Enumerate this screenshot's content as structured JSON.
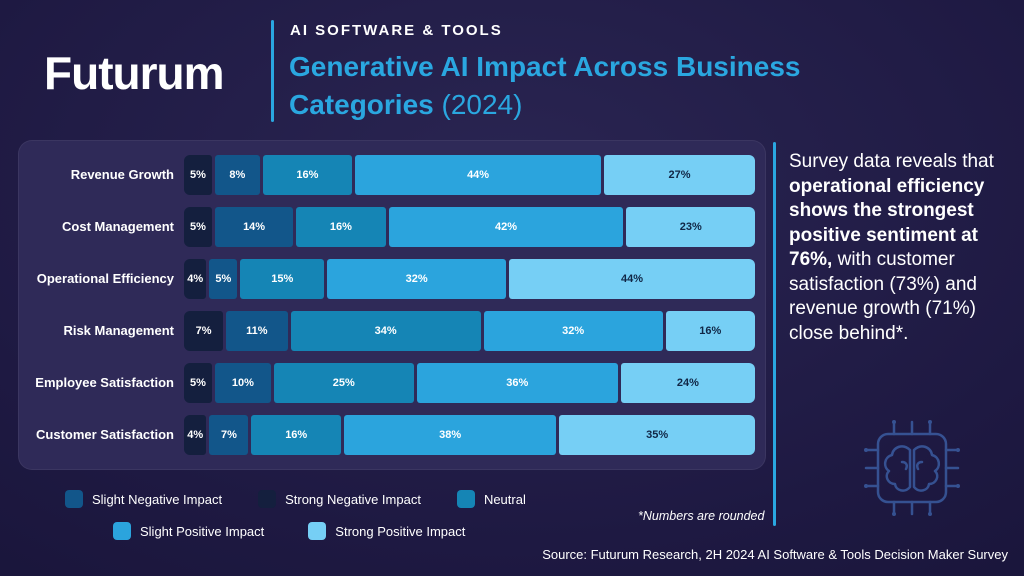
{
  "header": {
    "logo": "Futurum",
    "kicker": "AI SOFTWARE & TOOLS",
    "title_line1": "Generative AI Impact Across Business",
    "title_line2": "Categories",
    "title_year": " (2024)"
  },
  "chart_data": {
    "type": "bar",
    "variant": "horizontal-stacked",
    "title": "Generative AI Impact Across Business Categories (2024)",
    "xlim": [
      0,
      100
    ],
    "value_suffix": "%",
    "categories": [
      "Revenue Growth",
      "Cost Management",
      "Operational Efficiency",
      "Risk Management",
      "Employee Satisfaction",
      "Customer Satisfaction"
    ],
    "series": [
      {
        "name": "Strong Negative Impact",
        "color": "#141f3e",
        "text_color": "#ffffff",
        "values": [
          5,
          5,
          4,
          7,
          5,
          4
        ]
      },
      {
        "name": "Slight Negative Impact",
        "color": "#12568a",
        "text_color": "#ffffff",
        "values": [
          8,
          14,
          5,
          11,
          10,
          7
        ]
      },
      {
        "name": "Neutral",
        "color": "#1585b5",
        "text_color": "#ffffff",
        "values": [
          16,
          16,
          15,
          34,
          25,
          16
        ]
      },
      {
        "name": "Slight Positive Impact",
        "color": "#2ba4dd",
        "text_color": "#ffffff",
        "values": [
          44,
          42,
          32,
          32,
          36,
          38
        ]
      },
      {
        "name": "Strong Positive Impact",
        "color": "#76cff5",
        "text_color": "#102645",
        "values": [
          27,
          23,
          44,
          16,
          24,
          35
        ]
      }
    ]
  },
  "legend": {
    "rows": [
      [
        {
          "label": "Slight Negative Impact",
          "color": "#12568a"
        },
        {
          "label": "Strong Negative Impact",
          "color": "#141f3e"
        },
        {
          "label": "Neutral",
          "color": "#1585b5"
        }
      ],
      [
        {
          "label": "Slight Positive Impact",
          "color": "#2ba4dd"
        },
        {
          "label": "Strong Positive Impact",
          "color": "#76cff5"
        }
      ]
    ]
  },
  "insight": {
    "pre": "Survey data reveals that ",
    "bold": "operational efficiency shows the strongest positive sentiment at 76%,",
    "post": " with customer satisfaction (73%) and revenue growth (71%) close behind*."
  },
  "footnote": "*Numbers are rounded",
  "source": "Source: Futurum Research, 2H 2024 AI Software & Tools Decision Maker Survey",
  "colors": {
    "accent_blue": "#2aa7e0",
    "background": "#1e1942",
    "panel": "#2f2a58"
  }
}
